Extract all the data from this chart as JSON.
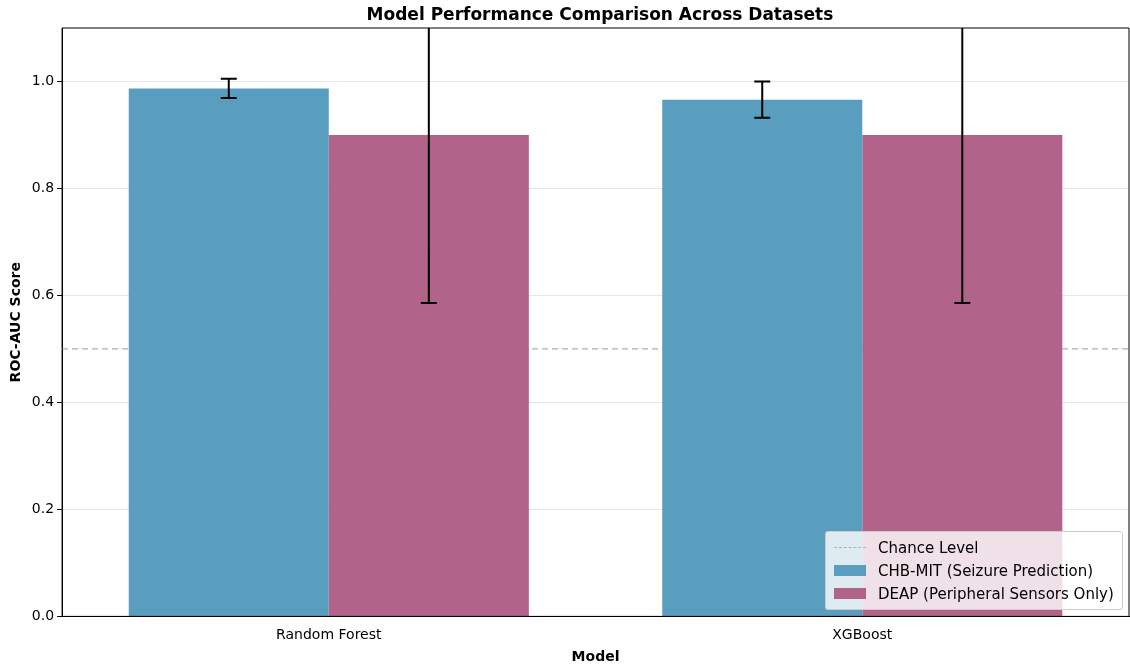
{
  "chart_data": {
    "type": "bar",
    "title": "Model Performance Comparison Across Datasets",
    "xlabel": "Model",
    "ylabel": "ROC-AUC Score",
    "categories": [
      "Random Forest",
      "XGBoost"
    ],
    "series": [
      {
        "name": "CHB-MIT (Seizure Prediction)",
        "color": "#5a9ebf",
        "values": [
          0.987,
          0.966
        ],
        "errors": [
          0.018,
          0.034
        ]
      },
      {
        "name": "DEAP (Peripheral Sensors Only)",
        "color": "#b2638a",
        "values": [
          0.9,
          0.9
        ],
        "errors": [
          0.314,
          0.314
        ]
      }
    ],
    "ylim": [
      0,
      1.1
    ],
    "yticks": [
      {
        "value": 0,
        "label": "0.0"
      },
      {
        "value": 0.2,
        "label": "0.2"
      },
      {
        "value": 0.4,
        "label": "0.4"
      },
      {
        "value": 0.6,
        "label": "0.6"
      },
      {
        "value": 0.8,
        "label": "0.8"
      },
      {
        "value": 1,
        "label": "1.0"
      }
    ],
    "ref_lines": [
      {
        "axis": "y",
        "value": 0.5,
        "label": "Chance Level",
        "color": "#b0b0b0",
        "line_style": "dashed"
      }
    ],
    "grid": "y",
    "legend": "bottom right"
  }
}
